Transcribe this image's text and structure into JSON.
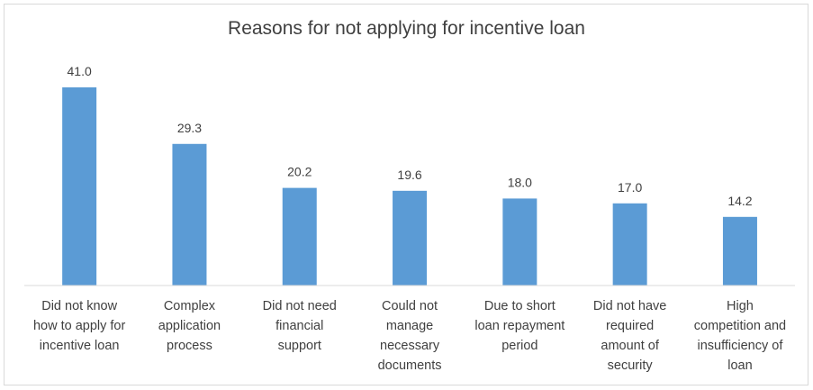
{
  "chart_data": {
    "type": "bar",
    "title": "Reasons for not applying for incentive loan",
    "categories": [
      "Did not know\nhow to apply for\nincentive loan",
      "Complex\napplication\nprocess",
      "Did not need\nfinancial\nsupport",
      "Could not\nmanage\nnecessary\ndocuments",
      "Due to short\nloan repayment\nperiod",
      "Did not have\nrequired\namount of\nsecurity",
      "High\ncompetition and\ninsufficiency of\nloan"
    ],
    "values": [
      41.0,
      29.3,
      20.2,
      19.6,
      18.0,
      17.0,
      14.2
    ],
    "data_labels": [
      "41.0",
      "29.3",
      "20.2",
      "19.6",
      "18.0",
      "17.0",
      "14.2"
    ],
    "bar_color": "#5b9bd5",
    "ylim": [
      0,
      41.0
    ],
    "grid": false,
    "legend": "none"
  }
}
